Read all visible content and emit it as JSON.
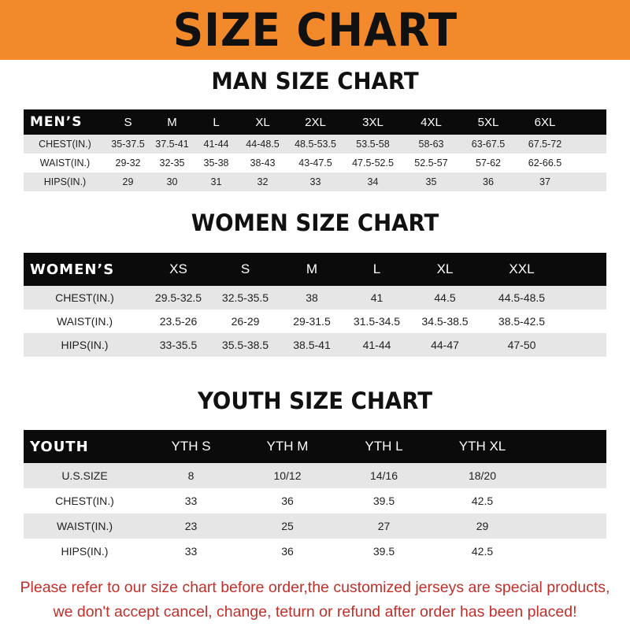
{
  "banner_title": "SIZE CHART",
  "men": {
    "title": "MAN SIZE CHART",
    "header": [
      "MEN’S",
      "S",
      "M",
      "L",
      "XL",
      "2XL",
      "3XL",
      "4XL",
      "5XL",
      "6XL"
    ],
    "rows": [
      [
        "CHEST(IN.)",
        "35-37.5",
        "37.5-41",
        "41-44",
        "44-48.5",
        "48.5-53.5",
        "53.5-58",
        "58-63",
        "63-67.5",
        "67.5-72"
      ],
      [
        "WAIST(IN.)",
        "29-32",
        "32-35",
        "35-38",
        "38-43",
        "43-47.5",
        "47.5-52.5",
        "52.5-57",
        "57-62",
        "62-66.5"
      ],
      [
        "HIPS(IN.)",
        "29",
        "30",
        "31",
        "32",
        "33",
        "34",
        "35",
        "36",
        "37"
      ]
    ]
  },
  "women": {
    "title": "WOMEN SIZE CHART",
    "header": [
      "WOMEN’S",
      "XS",
      "S",
      "M",
      "L",
      "XL",
      "XXL"
    ],
    "rows": [
      [
        "CHEST(IN.)",
        "29.5-32.5",
        "32.5-35.5",
        "38",
        "41",
        "44.5",
        "44.5-48.5"
      ],
      [
        "WAIST(IN.)",
        "23.5-26",
        "26-29",
        "29-31.5",
        "31.5-34.5",
        "34.5-38.5",
        "38.5-42.5"
      ],
      [
        "HIPS(IN.)",
        "33-35.5",
        "35.5-38.5",
        "38.5-41",
        "41-44",
        "44-47",
        "47-50"
      ]
    ]
  },
  "youth": {
    "title": "YOUTH SIZE CHART",
    "header": [
      "YOUTH",
      "YTH S",
      "YTH M",
      "YTH L",
      "YTH XL"
    ],
    "rows": [
      [
        "U.S.SIZE",
        "8",
        "10/12",
        "14/16",
        "18/20"
      ],
      [
        "CHEST(IN.)",
        "33",
        "36",
        "39.5",
        "42.5"
      ],
      [
        "WAIST(IN.)",
        "23",
        "25",
        "27",
        "29"
      ],
      [
        "HIPS(IN.)",
        "33",
        "36",
        "39.5",
        "42.5"
      ]
    ]
  },
  "notice": {
    "line1": "Please refer to our size chart before order,the customized jerseys are special products,",
    "line2": "we don't accept cancel, change, teturn or refund after order has been placed!"
  },
  "colors": {
    "banner": "#f28a2c",
    "header_row": "#0b0b0b",
    "stripe": "#e6e6e6",
    "notice": "#c0302a"
  }
}
